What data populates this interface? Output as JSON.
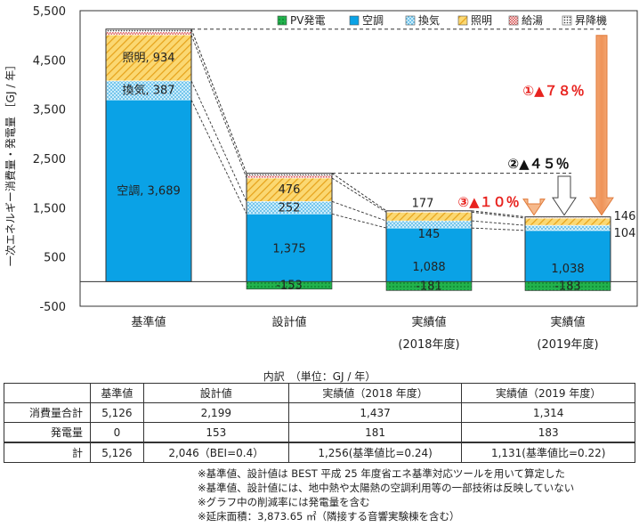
{
  "chart_data": {
    "type": "bar",
    "ylabel": "一次エネルギー消費量・発電量 ［GJ / 年］",
    "ylim": [
      -500,
      5500
    ],
    "yticks": [
      -500,
      500,
      1500,
      2500,
      3500,
      4500,
      5500
    ],
    "yticks_labels": [
      "-500",
      "500",
      "1,500",
      "2,500",
      "3,500",
      "4,500",
      "5,500"
    ],
    "categories": [
      {
        "line1": "基準値",
        "line2": ""
      },
      {
        "line1": "設計値",
        "line2": ""
      },
      {
        "line1": "実績値",
        "line2": "(2018年度)"
      },
      {
        "line1": "実績値",
        "line2": "(2019年度)"
      }
    ],
    "series": [
      {
        "name": "PV発電",
        "color": "#1aa84a",
        "values": [
          0,
          -153,
          -181,
          -183
        ]
      },
      {
        "name": "空調",
        "color": "#0aa2e6",
        "values": [
          3689,
          1375,
          1088,
          1038
        ]
      },
      {
        "name": "換気",
        "color": "#a7dcf6",
        "values": [
          387,
          252,
          145,
          104
        ]
      },
      {
        "name": "照明",
        "color": "#f8c24a",
        "values": [
          934,
          476,
          177,
          146
        ]
      },
      {
        "name": "給湯",
        "color": "#e07a7a",
        "values": [
          60,
          50,
          15,
          14
        ]
      },
      {
        "name": "昇降機",
        "color": "#555555",
        "values": [
          56,
          46,
          12,
          12
        ]
      }
    ],
    "data_labels": [
      {
        "bar": 0,
        "series": "空調",
        "text": "空調, 3,689"
      },
      {
        "bar": 0,
        "series": "換気",
        "text": "換気, 387"
      },
      {
        "bar": 0,
        "series": "照明",
        "text": "照明, 934"
      },
      {
        "bar": 1,
        "series": "空調",
        "text": "1,375"
      },
      {
        "bar": 1,
        "series": "換気",
        "text": "252"
      },
      {
        "bar": 1,
        "series": "照明",
        "text": "476"
      },
      {
        "bar": 1,
        "series": "PV発電",
        "text": "-153"
      },
      {
        "bar": 2,
        "series": "空調",
        "text": "1,088"
      },
      {
        "bar": 2,
        "series": "換気",
        "text": "145"
      },
      {
        "bar": 2,
        "series": "照明",
        "text": "177"
      },
      {
        "bar": 2,
        "series": "PV発電",
        "text": "-181"
      },
      {
        "bar": 3,
        "series": "空調",
        "text": "1,038"
      },
      {
        "bar": 3,
        "series": "換気",
        "text": "104"
      },
      {
        "bar": 3,
        "series": "照明",
        "text": "146"
      },
      {
        "bar": 3,
        "series": "PV発電",
        "text": "-183"
      }
    ],
    "annotations": [
      {
        "text": "①▲７８％",
        "color": "#e8231f"
      },
      {
        "text": "②▲４５％",
        "color": "#111111"
      },
      {
        "text": "③▲１０％",
        "color": "#e8231f"
      }
    ],
    "legend_position": "top-right",
    "grid": false
  },
  "table": {
    "title": "内訳　（単位：GJ / 年）",
    "columns": [
      "",
      "基準値",
      "設計値",
      "実績値（2018 年度）",
      "実績値（2019 年度）"
    ],
    "rows": [
      {
        "label": "消費量合計",
        "cells": [
          "5,126",
          "2,199",
          "1,437",
          "1,314"
        ]
      },
      {
        "label": "発電量",
        "cells": [
          "0",
          "153",
          "181",
          "183"
        ]
      },
      {
        "label": "計",
        "cells": [
          "5,126",
          "2,046（BEI=0.4）",
          "1,256(基準値比=0.24)",
          "1,131(基準値比=0.22)"
        ]
      }
    ]
  },
  "notes": [
    "※基準値、設計値は BEST 平成 25 年度省エネ基準対応ツールを用いて算定した",
    "※基準値、設計値には、地中熱や太陽熱の空調利用等の一部技術は反映していない",
    "※グラフ中の削減率には発電量を含む",
    "※延床面積：3,873.65 ㎡（隣接する音響実験棟を含む）"
  ]
}
